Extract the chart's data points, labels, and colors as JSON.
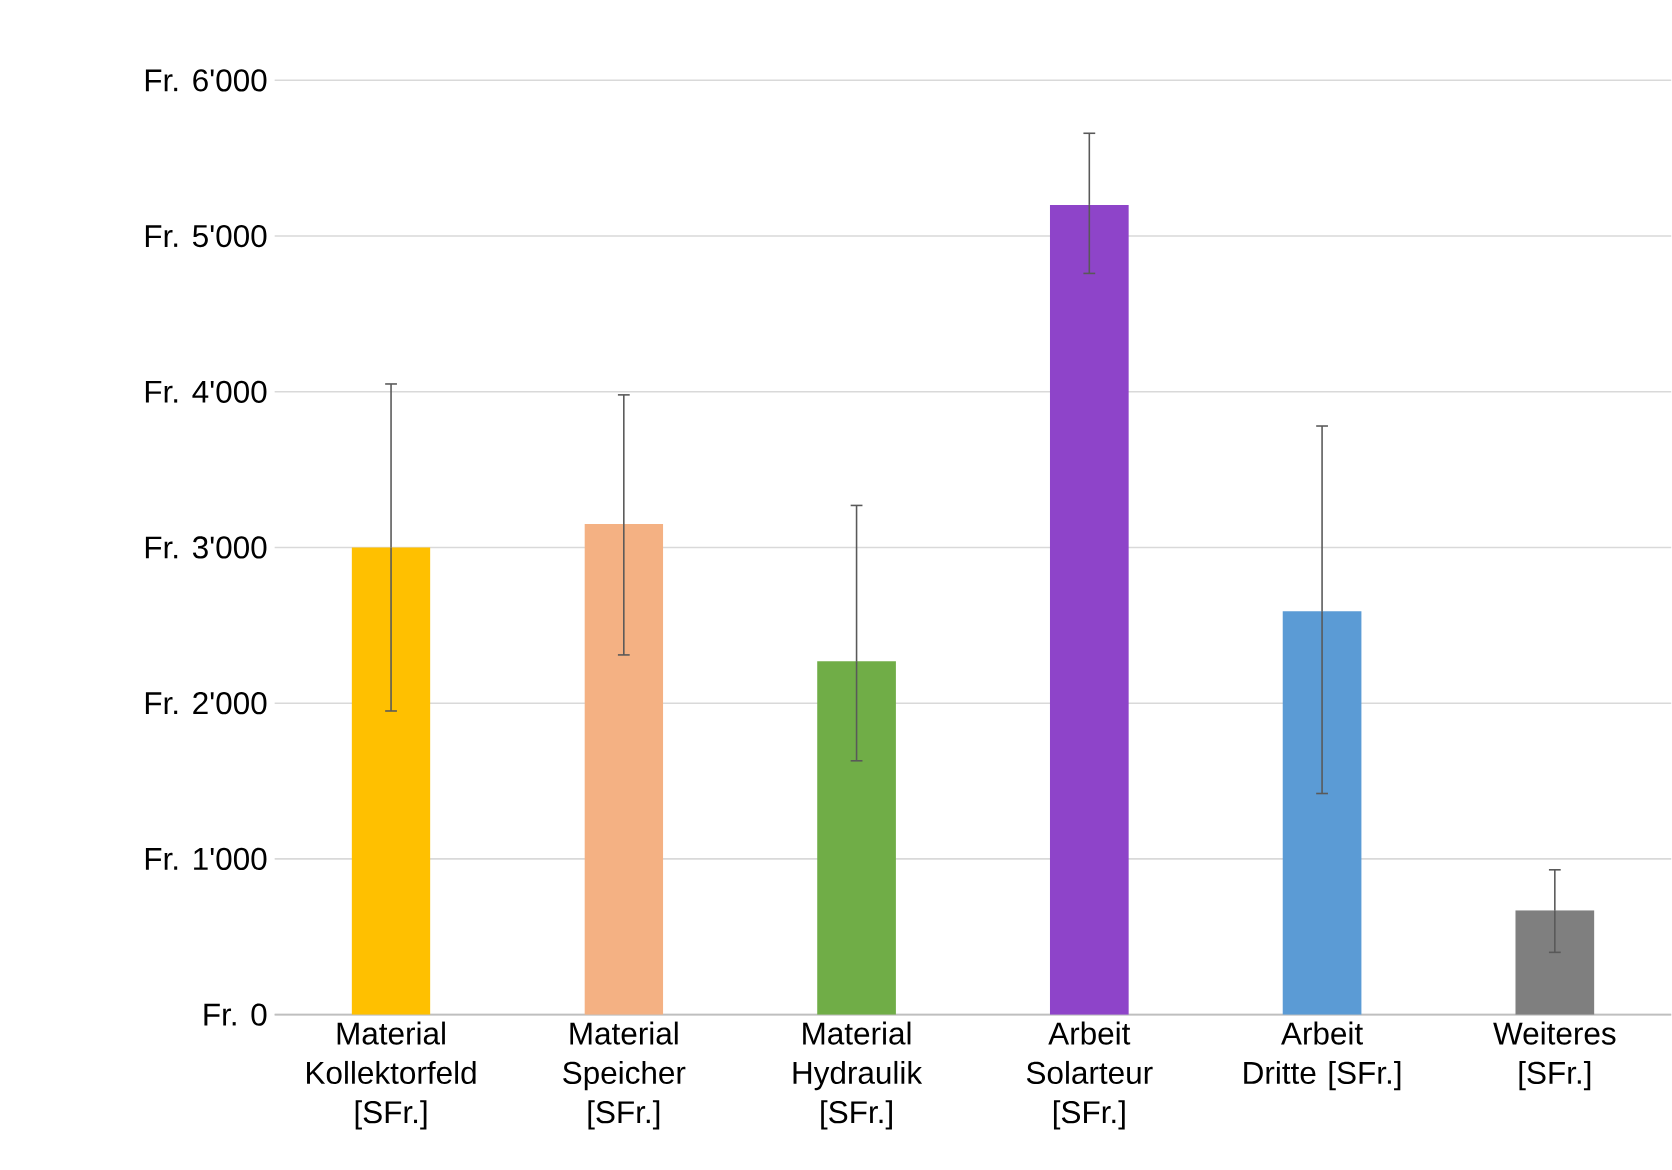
{
  "chart_data": {
    "type": "bar",
    "categories": [
      "Material Kollektorfeld [SFr.]",
      "Material Speicher [SFr.]",
      "Material Hydraulik [SFr.]",
      "Arbeit Solarteur [SFr.]",
      "Arbeit Dritte [SFr.]",
      "Weiteres [SFr.]"
    ],
    "values": [
      3000,
      3150,
      2270,
      5200,
      2590,
      670
    ],
    "colors": [
      "#ffc000",
      "#f4b183",
      "#70ad47",
      "#8e44c9",
      "#5b9bd5",
      "#7f7f7f"
    ],
    "errors": [
      [
        1950,
        4050
      ],
      [
        2310,
        3980
      ],
      [
        1630,
        3270
      ],
      [
        4760,
        5660
      ],
      [
        1420,
        3780
      ],
      [
        400,
        930
      ]
    ],
    "ylim": [
      0,
      6000
    ],
    "yticks": [
      {
        "value": 0,
        "label": "Fr. 0"
      },
      {
        "value": 1000,
        "label": "Fr. 1'000"
      },
      {
        "value": 2000,
        "label": "Fr. 2'000"
      },
      {
        "value": 3000,
        "label": "Fr. 3'000"
      },
      {
        "value": 4000,
        "label": "Fr. 4'000"
      },
      {
        "value": 5000,
        "label": "Fr. 5'000"
      },
      {
        "value": 6000,
        "label": "Fr. 6'000"
      }
    ],
    "grid": "y"
  }
}
